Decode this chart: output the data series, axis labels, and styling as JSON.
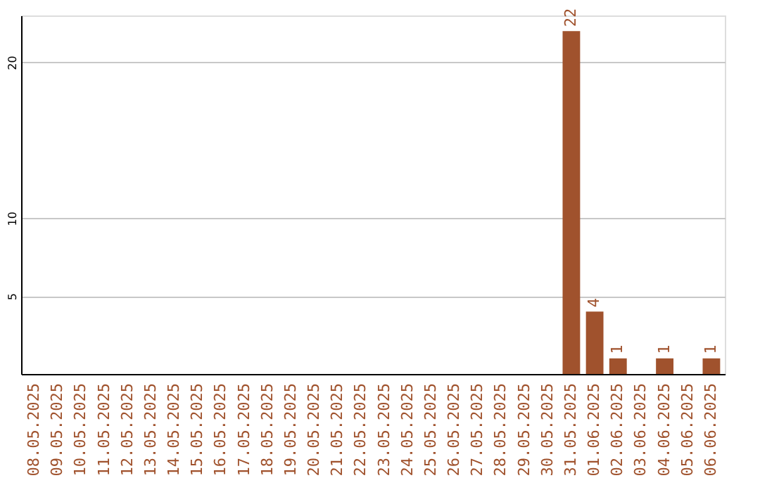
{
  "chart_data": {
    "type": "bar",
    "categories": [
      "08.05.2025",
      "09.05.2025",
      "10.05.2025",
      "11.05.2025",
      "12.05.2025",
      "13.05.2025",
      "14.05.2025",
      "15.05.2025",
      "16.05.2025",
      "17.05.2025",
      "18.05.2025",
      "19.05.2025",
      "20.05.2025",
      "21.05.2025",
      "22.05.2025",
      "23.05.2025",
      "24.05.2025",
      "25.05.2025",
      "26.05.2025",
      "27.05.2025",
      "28.05.2025",
      "29.05.2025",
      "30.05.2025",
      "31.05.2025",
      "01.06.2025",
      "02.06.2025",
      "03.06.2025",
      "04.06.2025",
      "05.06.2025",
      "06.06.2025"
    ],
    "values": [
      0,
      0,
      0,
      0,
      0,
      0,
      0,
      0,
      0,
      0,
      0,
      0,
      0,
      0,
      0,
      0,
      0,
      0,
      0,
      0,
      0,
      0,
      0,
      22,
      4,
      1,
      0,
      1,
      0,
      1
    ],
    "value_labels": [
      null,
      null,
      null,
      null,
      null,
      null,
      null,
      null,
      null,
      null,
      null,
      null,
      null,
      null,
      null,
      null,
      null,
      null,
      null,
      null,
      null,
      null,
      null,
      "22",
      "4",
      "1",
      null,
      "1",
      null,
      "1"
    ],
    "color": "#a0522d",
    "ylim": [
      0,
      23
    ],
    "yticks": [
      5,
      10,
      20
    ],
    "grid": "y"
  }
}
